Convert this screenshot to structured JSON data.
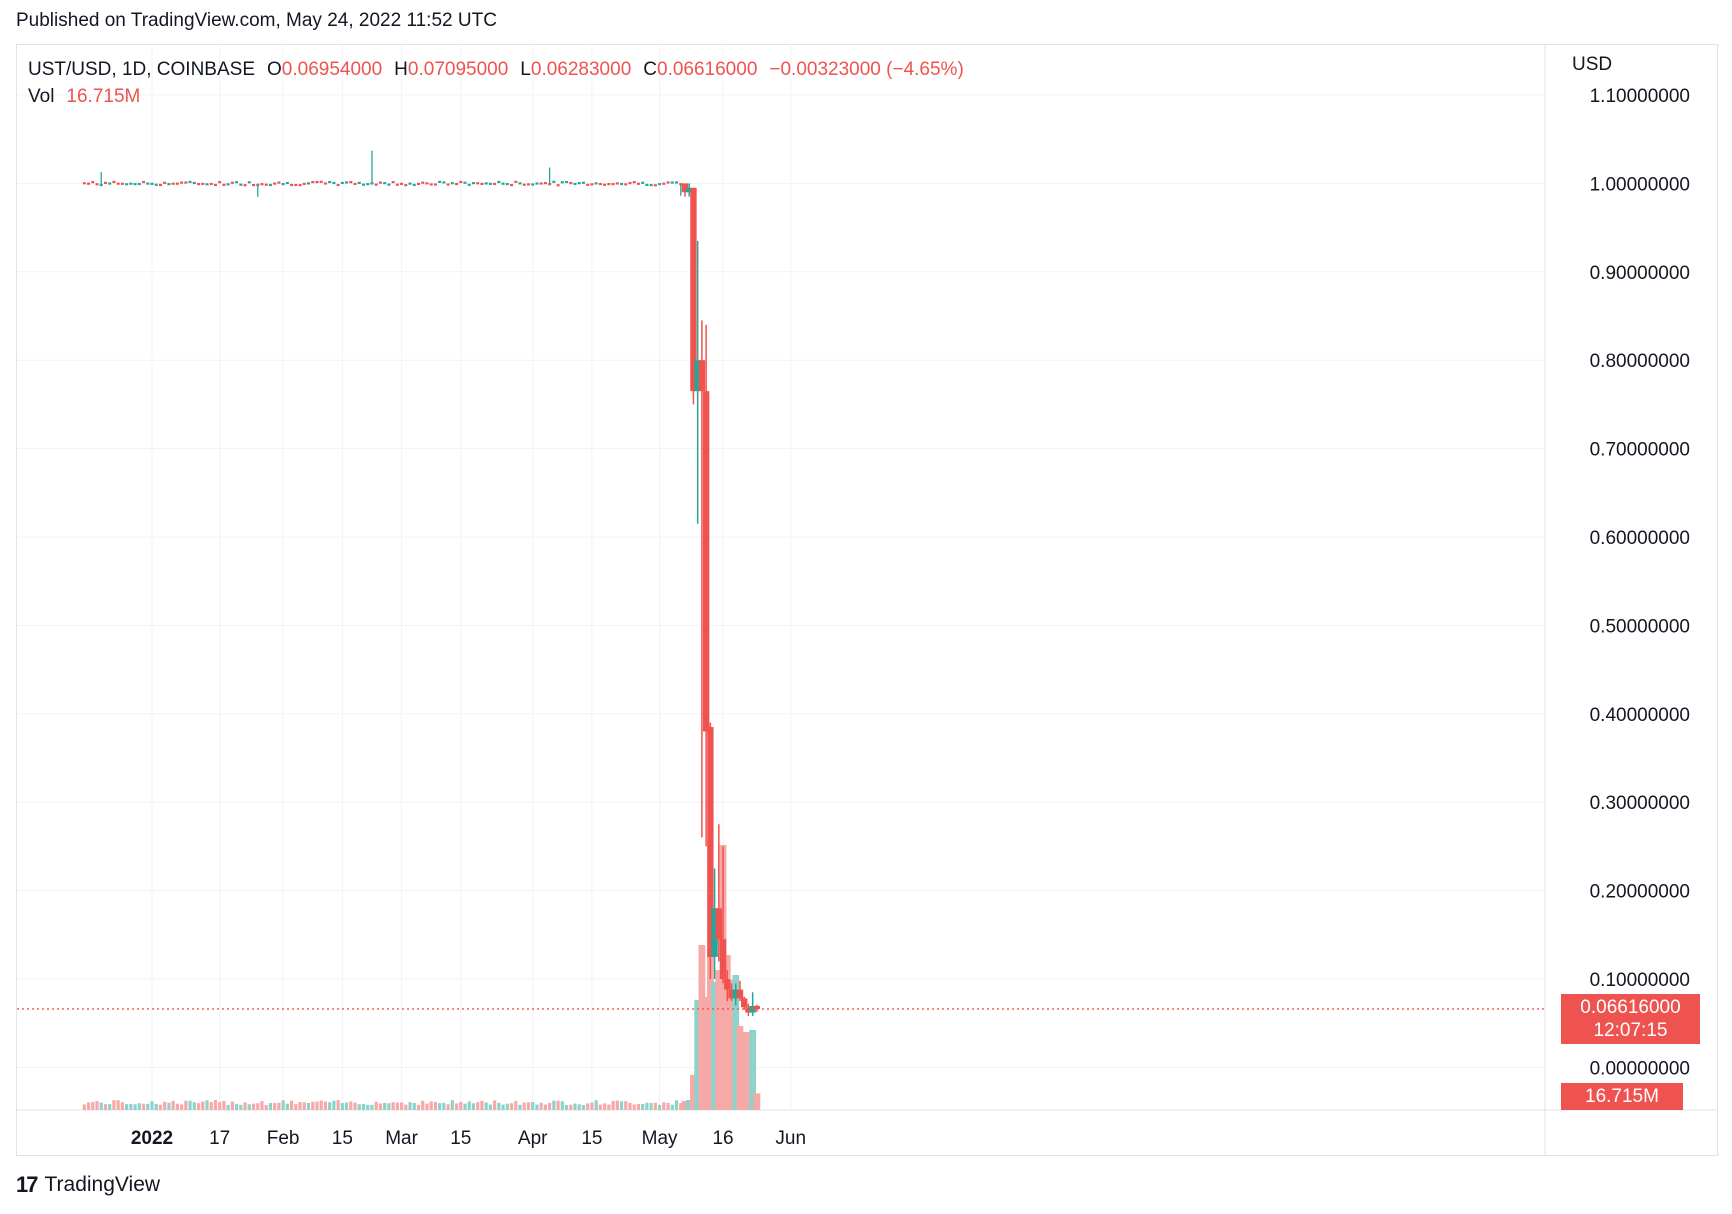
{
  "published": "Published on TradingView.com, May 24, 2022 11:52 UTC",
  "legend": {
    "symbol": "UST/USD, 1D, COINBASE",
    "o_label": "O",
    "o_value": "0.06954000",
    "h_label": "H",
    "h_value": "0.07095000",
    "l_label": "L",
    "l_value": "0.06283000",
    "c_label": "C",
    "c_value": "0.06616000",
    "change": "−0.00323000 (−4.65%)",
    "vol_label": "Vol",
    "vol_value": "16.715M"
  },
  "currency_label": "USD",
  "price_tag": {
    "price": "0.06616000",
    "countdown": "12:07:15"
  },
  "volume_tag": "16.715M",
  "footer": {
    "brand": "TradingView",
    "logo_mark": "17"
  },
  "colors": {
    "up": "#26a69a",
    "down": "#ef5350",
    "up_volume": "#8fd2c9",
    "down_volume": "#f7a9a7",
    "grid": "#f0f3fa"
  },
  "chart_data": {
    "type": "candlestick",
    "symbol": "UST/USD",
    "interval": "1D",
    "exchange": "COINBASE",
    "y_axis_ticks": [
      "1.10000000",
      "1.00000000",
      "0.90000000",
      "0.80000000",
      "0.70000000",
      "0.60000000",
      "0.50000000",
      "0.40000000",
      "0.30000000",
      "0.20000000",
      "0.10000000",
      "0.00000000"
    ],
    "ylim": [
      0,
      1.1
    ],
    "x_axis_ticks": [
      {
        "label": "2022",
        "date": "2022-01-01"
      },
      {
        "label": "17",
        "date": "2022-01-17"
      },
      {
        "label": "Feb",
        "date": "2022-02-01"
      },
      {
        "label": "15",
        "date": "2022-02-15"
      },
      {
        "label": "Mar",
        "date": "2022-03-01"
      },
      {
        "label": "15",
        "date": "2022-03-15"
      },
      {
        "label": "Apr",
        "date": "2022-04-01"
      },
      {
        "label": "15",
        "date": "2022-04-15"
      },
      {
        "label": "May",
        "date": "2022-05-01"
      },
      {
        "label": "16",
        "date": "2022-05-16"
      },
      {
        "label": "Jun",
        "date": "2022-06-01"
      }
    ],
    "xlim": [
      "2021-12-16",
      "2022-06-01"
    ],
    "flat_period": {
      "start": "2021-12-16",
      "end": "2022-05-07",
      "level": 1.0,
      "note_values": [
        {
          "date": "2021-12-20",
          "high": 1.013,
          "low": 0.998
        },
        {
          "date": "2022-01-26",
          "high": 1.0,
          "low": 0.985
        },
        {
          "date": "2022-02-22",
          "high": 1.037,
          "low": 1.0
        },
        {
          "date": "2022-04-05",
          "high": 1.018,
          "low": 1.0
        },
        {
          "date": "2022-05-06",
          "high": 0.999,
          "low": 0.986
        }
      ]
    },
    "candles": [
      {
        "date": "2022-05-07",
        "open": 1.0,
        "high": 1.0,
        "low": 0.985,
        "close": 0.99,
        "volume": 9.0
      },
      {
        "date": "2022-05-08",
        "open": 0.99,
        "high": 1.0,
        "low": 0.985,
        "close": 0.995,
        "volume": 10.0
      },
      {
        "date": "2022-05-09",
        "open": 0.995,
        "high": 0.995,
        "low": 0.75,
        "close": 0.765,
        "volume": 35.0
      },
      {
        "date": "2022-05-10",
        "open": 0.765,
        "high": 0.935,
        "low": 0.615,
        "close": 0.8,
        "volume": 110.0
      },
      {
        "date": "2022-05-11",
        "open": 0.8,
        "high": 0.845,
        "low": 0.26,
        "close": 0.765,
        "volume": 165.0
      },
      {
        "date": "2022-05-12",
        "open": 0.765,
        "high": 0.84,
        "low": 0.25,
        "close": 0.38,
        "volume": 113.0
      },
      {
        "date": "2022-05-13",
        "open": 0.385,
        "high": 0.39,
        "low": 0.1,
        "close": 0.125,
        "volume": 160.0
      },
      {
        "date": "2022-05-14",
        "open": 0.125,
        "high": 0.225,
        "low": 0.1,
        "close": 0.18,
        "volume": 128.0
      },
      {
        "date": "2022-05-15",
        "open": 0.18,
        "high": 0.275,
        "low": 0.12,
        "close": 0.145,
        "volume": 140.0
      },
      {
        "date": "2022-05-16",
        "open": 0.145,
        "high": 0.25,
        "low": 0.095,
        "close": 0.1,
        "volume": 265.0
      },
      {
        "date": "2022-05-17",
        "open": 0.1,
        "high": 0.11,
        "low": 0.075,
        "close": 0.088,
        "volume": 155.0
      },
      {
        "date": "2022-05-18",
        "open": 0.088,
        "high": 0.095,
        "low": 0.075,
        "close": 0.078,
        "volume": 130.0
      },
      {
        "date": "2022-05-19",
        "open": 0.078,
        "high": 0.095,
        "low": 0.07,
        "close": 0.088,
        "volume": 135.0
      },
      {
        "date": "2022-05-20",
        "open": 0.088,
        "high": 0.098,
        "low": 0.075,
        "close": 0.078,
        "volume": 84.0
      },
      {
        "date": "2022-05-21",
        "open": 0.078,
        "high": 0.08,
        "low": 0.065,
        "close": 0.068,
        "volume": 78.0
      },
      {
        "date": "2022-05-22",
        "open": 0.068,
        "high": 0.072,
        "low": 0.058,
        "close": 0.062,
        "volume": 78.0
      },
      {
        "date": "2022-05-23",
        "open": 0.062,
        "high": 0.085,
        "low": 0.058,
        "close": 0.0695,
        "volume": 80.0
      },
      {
        "date": "2022-05-24",
        "open": 0.06954,
        "high": 0.07095,
        "low": 0.06283,
        "close": 0.06616,
        "volume": 16.715
      }
    ],
    "volume_unit": "M",
    "current_price": 0.06616
  }
}
